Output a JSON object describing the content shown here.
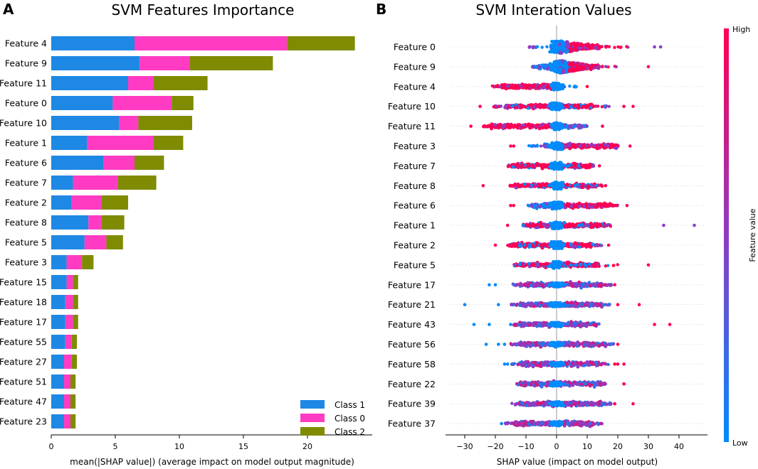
{
  "colors": {
    "class1": "#1E88E5",
    "class0": "#FF3BC3",
    "class2": "#7F8B00",
    "high": "#FF0052",
    "low": "#008BFB",
    "mid": "#8E3CC2"
  },
  "chart_data": [
    {
      "panel": "A",
      "type": "bar",
      "stacked": true,
      "orientation": "horizontal",
      "title": "SVM Features Importance",
      "xlabel": "mean(|SHAP value|) (average impact on model output magnitude)",
      "xlim": [
        0,
        25
      ],
      "xticks": [
        0,
        5,
        10,
        15,
        20
      ],
      "categories": [
        "Feature 4",
        "Feature 9",
        "Feature 11",
        "Feature 0",
        "Feature 10",
        "Feature 1",
        "Feature 6",
        "Feature 7",
        "Feature 2",
        "Feature 8",
        "Feature 5",
        "Feature 3",
        "Feature 15",
        "Feature 18",
        "Feature 17",
        "Feature 55",
        "Feature 27",
        "Feature 51",
        "Feature 47",
        "Feature 23"
      ],
      "series": [
        {
          "name": "Class 1",
          "color_key": "class1",
          "values": [
            6.5,
            6.9,
            6.0,
            4.8,
            5.3,
            2.8,
            4.1,
            1.7,
            1.6,
            2.9,
            2.6,
            1.2,
            1.2,
            1.1,
            1.1,
            1.1,
            1.0,
            1.0,
            1.0,
            1.0
          ]
        },
        {
          "name": "Class 0",
          "color_key": "class0",
          "values": [
            11.9,
            3.9,
            2.0,
            4.6,
            1.5,
            5.2,
            2.4,
            3.5,
            2.3,
            1.0,
            1.7,
            1.2,
            0.5,
            0.6,
            0.6,
            0.5,
            0.6,
            0.5,
            0.5,
            0.5
          ]
        },
        {
          "name": "Class 2",
          "color_key": "class2",
          "values": [
            5.3,
            6.5,
            4.2,
            1.7,
            4.2,
            2.3,
            2.3,
            3.0,
            2.1,
            1.8,
            1.3,
            0.9,
            0.4,
            0.4,
            0.4,
            0.4,
            0.4,
            0.4,
            0.4,
            0.4
          ]
        }
      ],
      "legend": {
        "location": "bottom-right",
        "entries": [
          "Class 1",
          "Class 0",
          "Class 2"
        ]
      }
    },
    {
      "panel": "B",
      "type": "scatter",
      "subtype": "beeswarm",
      "title": "SVM Interation Values",
      "xlabel": "SHAP value (impact on model output)",
      "xlim": [
        -34,
        49
      ],
      "xticks": [
        -30,
        -20,
        -10,
        0,
        10,
        20,
        30,
        40
      ],
      "colorbar": {
        "label": "Feature value",
        "high": "High",
        "low": "Low"
      },
      "rows": [
        {
          "feature": "Feature 0",
          "core_lo": -2,
          "core_hi": 14,
          "whisk_lo": -9,
          "whisk_hi": 24,
          "out": [
            32,
            34
          ],
          "skew": 1,
          "cmode": "pos-high"
        },
        {
          "feature": "Feature 9",
          "core_lo": -6,
          "core_hi": 14,
          "whisk_lo": -8,
          "whisk_hi": 23,
          "out": [
            30
          ],
          "skew": 1,
          "cmode": "pos-high"
        },
        {
          "feature": "Feature 4",
          "core_lo": -18,
          "core_hi": 2,
          "whisk_lo": -21,
          "whisk_hi": 7,
          "out": [
            10
          ],
          "skew": -1,
          "cmode": "neg-high"
        },
        {
          "feature": "Feature 10",
          "core_lo": -17,
          "core_hi": 12,
          "whisk_lo": -21,
          "whisk_hi": 18,
          "out": [
            -25,
            22,
            25
          ],
          "skew": -1,
          "cmode": "mixed"
        },
        {
          "feature": "Feature 11",
          "core_lo": -22,
          "core_hi": 8,
          "whisk_lo": -24,
          "whisk_hi": 10,
          "out": [
            -28,
            15
          ],
          "skew": -1,
          "cmode": "neg-high"
        },
        {
          "feature": "Feature 3",
          "core_lo": -4,
          "core_hi": 20,
          "whisk_lo": -10,
          "whisk_hi": 20,
          "out": [
            -15,
            -14,
            24
          ],
          "skew": 1,
          "cmode": "pos-high"
        },
        {
          "feature": "Feature 7",
          "core_lo": -15,
          "core_hi": 12,
          "whisk_lo": -16,
          "whisk_hi": 12,
          "out": [
            14
          ],
          "skew": 0,
          "cmode": "mixed"
        },
        {
          "feature": "Feature 8",
          "core_lo": -14,
          "core_hi": 13,
          "whisk_lo": -16,
          "whisk_hi": 15,
          "out": [
            -24,
            16
          ],
          "skew": 0,
          "cmode": "mixed"
        },
        {
          "feature": "Feature 6",
          "core_lo": -8,
          "core_hi": 18,
          "whisk_lo": -10,
          "whisk_hi": 20,
          "out": [
            -15,
            -14,
            23
          ],
          "skew": 1,
          "cmode": "pos-high"
        },
        {
          "feature": "Feature 1",
          "core_lo": -10,
          "core_hi": 16,
          "whisk_lo": -11,
          "whisk_hi": 18,
          "out": [
            -16,
            35,
            45
          ],
          "skew": 0,
          "cmode": "mixed"
        },
        {
          "feature": "Feature 2",
          "core_lo": -15,
          "core_hi": 12,
          "whisk_lo": -16,
          "whisk_hi": 15,
          "out": [
            -20,
            17
          ],
          "skew": 0,
          "cmode": "mixed"
        },
        {
          "feature": "Feature 5",
          "core_lo": -12,
          "core_hi": 14,
          "whisk_lo": -14,
          "whisk_hi": 20,
          "out": [
            30
          ],
          "skew": 0,
          "cmode": "mixed"
        },
        {
          "feature": "Feature 17",
          "core_lo": -12,
          "core_hi": 15,
          "whisk_lo": -15,
          "whisk_hi": 18,
          "out": [
            -22,
            -20,
            19
          ],
          "skew": 0,
          "cmode": "purple"
        },
        {
          "feature": "Feature 21",
          "core_lo": -12,
          "core_hi": 15,
          "whisk_lo": -15,
          "whisk_hi": 18,
          "out": [
            -30,
            -19,
            20,
            27
          ],
          "skew": 0,
          "cmode": "purple"
        },
        {
          "feature": "Feature 43",
          "core_lo": -12,
          "core_hi": 13,
          "whisk_lo": -14,
          "whisk_hi": 14,
          "out": [
            -27,
            -22,
            -15,
            32,
            37
          ],
          "skew": 0,
          "cmode": "purple"
        },
        {
          "feature": "Feature 56",
          "core_lo": -12,
          "core_hi": 16,
          "whisk_lo": -15,
          "whisk_hi": 19,
          "out": [
            -23,
            -19,
            -17,
            20
          ],
          "skew": 0,
          "cmode": "purple"
        },
        {
          "feature": "Feature 58",
          "core_lo": -12,
          "core_hi": 14,
          "whisk_lo": -15,
          "whisk_hi": 17,
          "out": [
            -17,
            -16,
            19,
            20,
            22
          ],
          "skew": 0,
          "cmode": "purple"
        },
        {
          "feature": "Feature 22",
          "core_lo": -12,
          "core_hi": 15,
          "whisk_lo": -13,
          "whisk_hi": 16,
          "out": [
            22,
            22
          ],
          "skew": 0,
          "cmode": "purple"
        },
        {
          "feature": "Feature 39",
          "core_lo": -12,
          "core_hi": 15,
          "whisk_lo": -15,
          "whisk_hi": 18,
          "out": [
            19,
            25
          ],
          "skew": 0,
          "cmode": "purple"
        },
        {
          "feature": "Feature 37",
          "core_lo": -14,
          "core_hi": 12,
          "whisk_lo": -17,
          "whisk_hi": 15,
          "out": [
            -18
          ],
          "skew": 0,
          "cmode": "purple"
        }
      ]
    }
  ]
}
